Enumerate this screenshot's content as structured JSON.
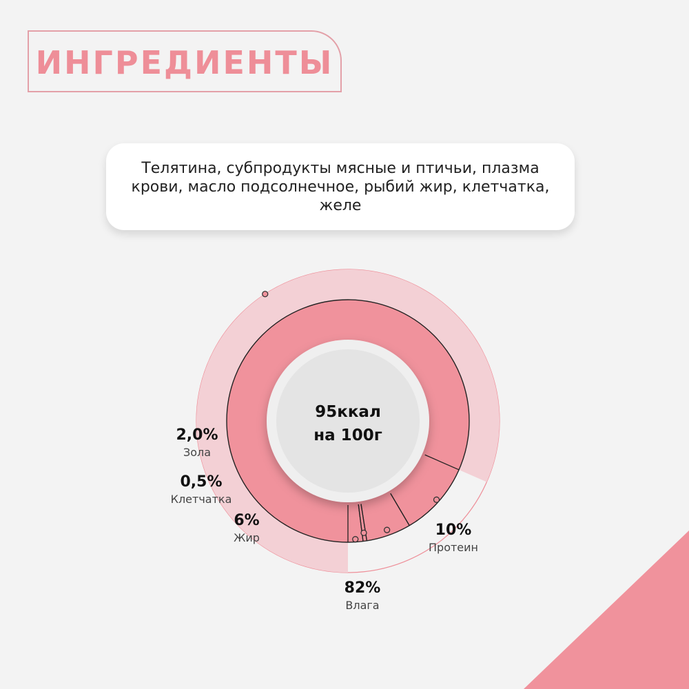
{
  "header": {
    "title": "ИНГРЕДИЕНТЫ"
  },
  "ingredients": {
    "text": "Телятина, субпродукты мясные и птичьи, плазма крови, масло подсолнечное, рыбий жир, клетчатка, желе"
  },
  "colors": {
    "accent": "#ee8e98",
    "outer_ring": "#f3d0d5",
    "inner_ring": "#f0929c",
    "center": "#e4e4e4",
    "background": "#f3f3f3"
  },
  "chart_data": {
    "type": "pie",
    "center_label": [
      "95ккал",
      "на 100г"
    ],
    "segments": [
      {
        "name": "Влага",
        "value": 82,
        "label": "82%",
        "ring": "outer"
      },
      {
        "name": "Протеин",
        "value": 10,
        "label": "10%",
        "ring": "inner"
      },
      {
        "name": "Жир",
        "value": 6,
        "label": "6%",
        "ring": "inner"
      },
      {
        "name": "Клетчатка",
        "value": 0.5,
        "label": "0,5%",
        "ring": "inner"
      },
      {
        "name": "Зола",
        "value": 2.0,
        "label": "2,0%",
        "ring": "inner"
      }
    ]
  }
}
